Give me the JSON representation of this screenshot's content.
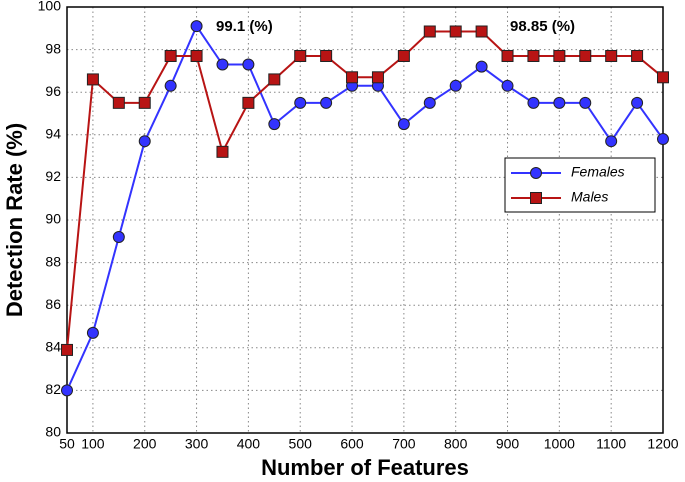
{
  "chart_data": {
    "type": "line",
    "x_label": "Number of Features",
    "y_label": "Detection Rate (%)",
    "x": [
      50,
      100,
      150,
      200,
      250,
      300,
      350,
      400,
      450,
      500,
      550,
      600,
      650,
      700,
      750,
      800,
      850,
      900,
      950,
      1000,
      1050,
      1100,
      1150,
      1200
    ],
    "series": [
      {
        "name": "Females",
        "color": "#3333ff",
        "marker": "circle",
        "values": [
          82.0,
          84.7,
          89.2,
          93.7,
          96.3,
          99.1,
          97.3,
          97.3,
          94.5,
          95.5,
          95.5,
          96.3,
          96.3,
          94.5,
          95.5,
          96.3,
          97.2,
          96.3,
          95.5,
          95.5,
          95.5,
          93.7,
          95.5,
          93.8
        ]
      },
      {
        "name": "Males",
        "color": "#b81414",
        "marker": "square",
        "values": [
          83.9,
          96.6,
          95.5,
          95.5,
          97.7,
          97.7,
          93.2,
          95.5,
          96.6,
          97.7,
          97.7,
          96.7,
          96.7,
          97.7,
          98.85,
          98.85,
          98.85,
          97.7,
          97.7,
          97.7,
          97.7,
          97.7,
          97.7,
          96.7
        ]
      }
    ],
    "annotations": [
      "99.1 (%)",
      "98.85 (%)"
    ],
    "xlim": [
      50,
      1200
    ],
    "xticks": [
      50,
      100,
      200,
      300,
      400,
      500,
      600,
      700,
      800,
      900,
      1000,
      1100,
      1200
    ],
    "ylim": [
      80,
      100
    ],
    "yticks": [
      80,
      82,
      84,
      86,
      88,
      90,
      92,
      94,
      96,
      98,
      100
    ],
    "grid": true,
    "legend": "right"
  }
}
